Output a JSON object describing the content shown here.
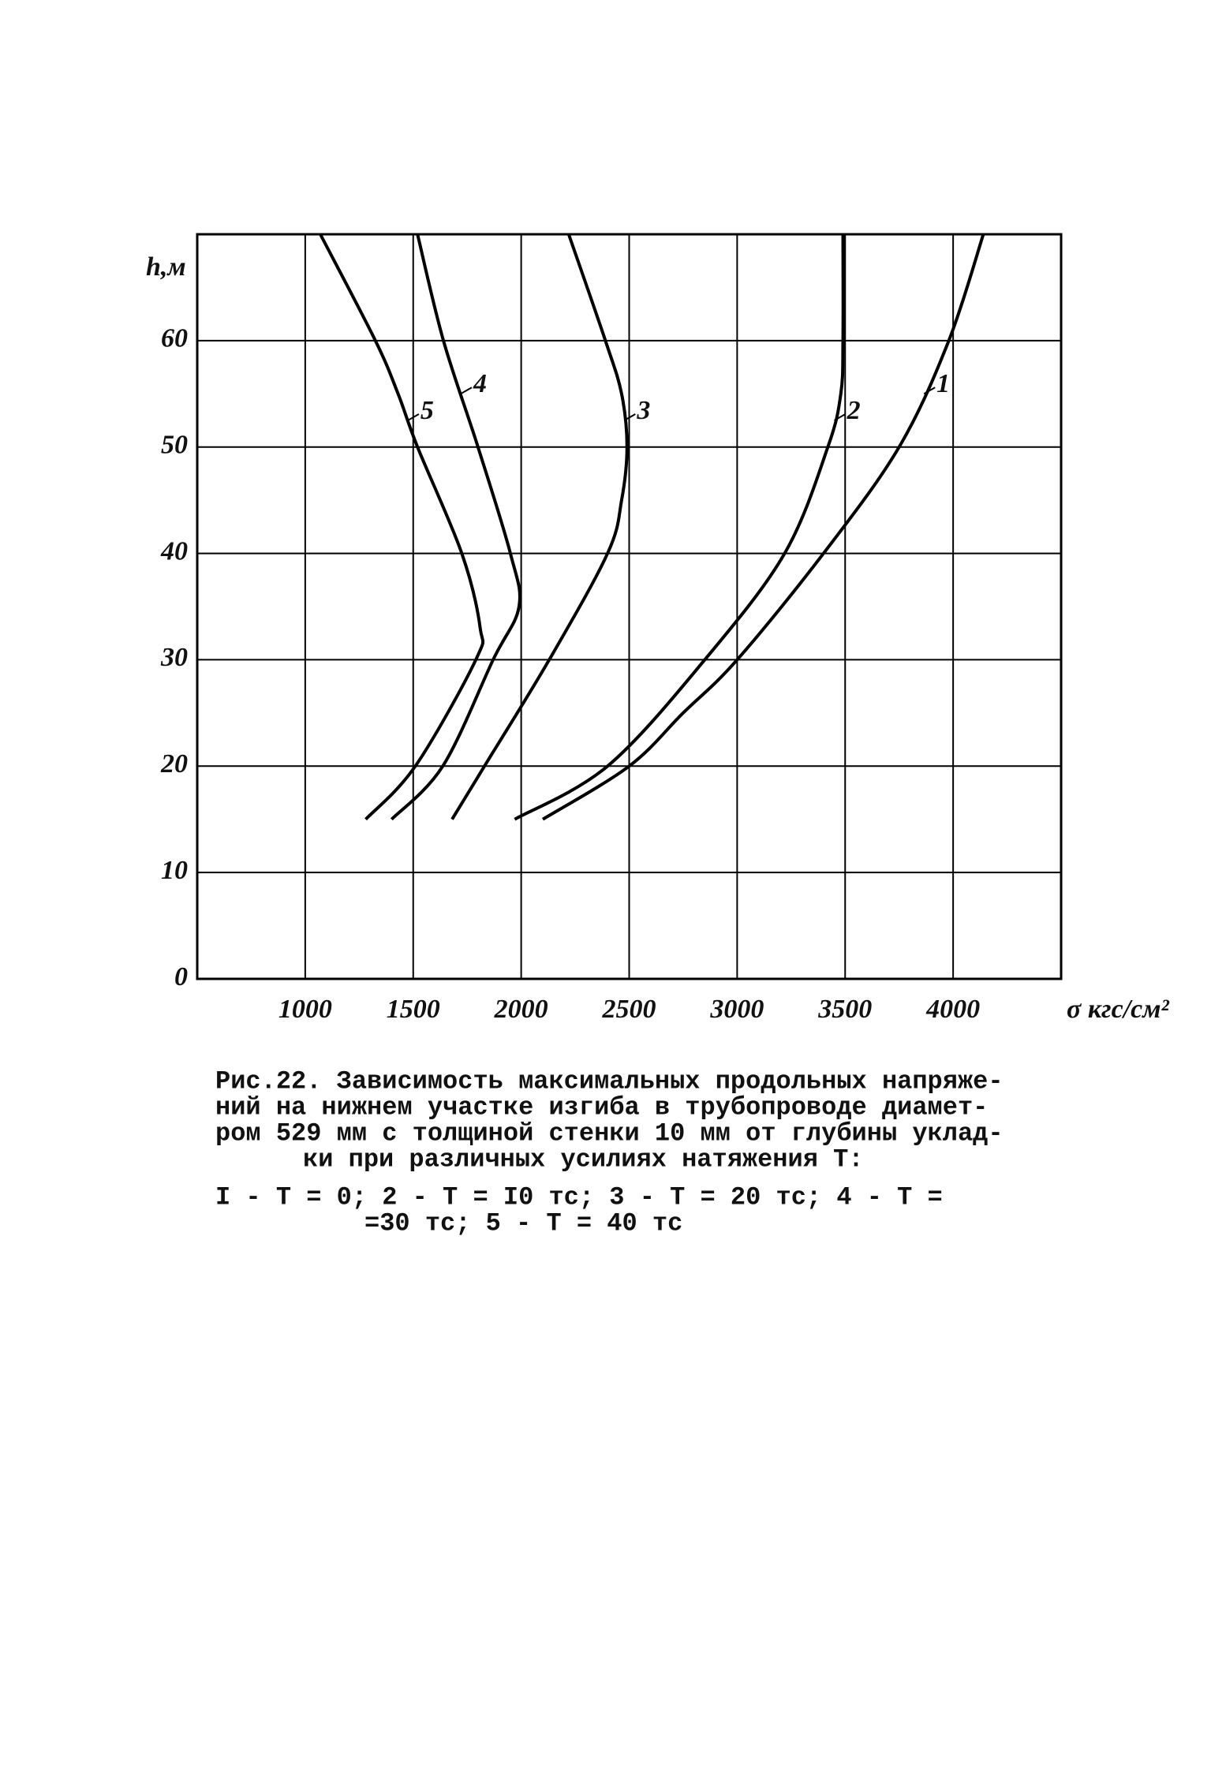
{
  "chart_data": {
    "type": "line",
    "y_label": "h,м",
    "x_label": "σ кгс/см²",
    "xlim": [
      500,
      4500
    ],
    "xticks": [
      1000,
      1500,
      2000,
      2500,
      3000,
      3500,
      4000
    ],
    "ylim": [
      0,
      70
    ],
    "yticks": [
      0,
      10,
      20,
      30,
      40,
      50,
      60
    ],
    "grid": true,
    "series": [
      {
        "name": "1",
        "color": "#000000",
        "x": [
          2100,
          2500,
          2750,
          3000,
          3400,
          3750,
          3980,
          4140
        ],
        "values": [
          15,
          20,
          25,
          30,
          40,
          50,
          60,
          70
        ]
      },
      {
        "name": "2",
        "color": "#000000",
        "x": [
          1970,
          2400,
          2850,
          3220,
          3420,
          3480,
          3490,
          3490
        ],
        "values": [
          15,
          20,
          30,
          40,
          50,
          55,
          60,
          70
        ]
      },
      {
        "name": "3",
        "color": "#000000",
        "x": [
          1680,
          1830,
          2130,
          2400,
          2465,
          2490,
          2465,
          2390,
          2220
        ],
        "values": [
          15,
          20,
          30,
          40,
          45,
          50,
          55,
          60,
          70
        ]
      },
      {
        "name": "4",
        "color": "#000000",
        "x": [
          1400,
          1637,
          1870,
          1990,
          1950,
          1800,
          1640,
          1520
        ],
        "values": [
          15,
          20,
          30,
          35,
          40,
          50,
          60,
          70
        ]
      },
      {
        "name": "5",
        "color": "#000000",
        "x": [
          1280,
          1510,
          1790,
          1810,
          1725,
          1520,
          1430,
          1325,
          1070
        ],
        "values": [
          15,
          20,
          30,
          33,
          40,
          50,
          55,
          60,
          70
        ]
      }
    ],
    "caption": [
      "Рис.22. Зависимость максимальных продольных напряже-",
      "ний на нижнем участке изгиба в трубопроводе диамет-",
      "ром 529 мм с толщиной стенки 10 мм от глубины уклад-",
      "ки при различных усилиях натяжения Т:",
      "I - Т = 0; 2 - Т = I0 тс; 3 - Т = 20 тс; 4 - Т =",
      "=30 тс; 5 - Т = 40 тс"
    ]
  }
}
